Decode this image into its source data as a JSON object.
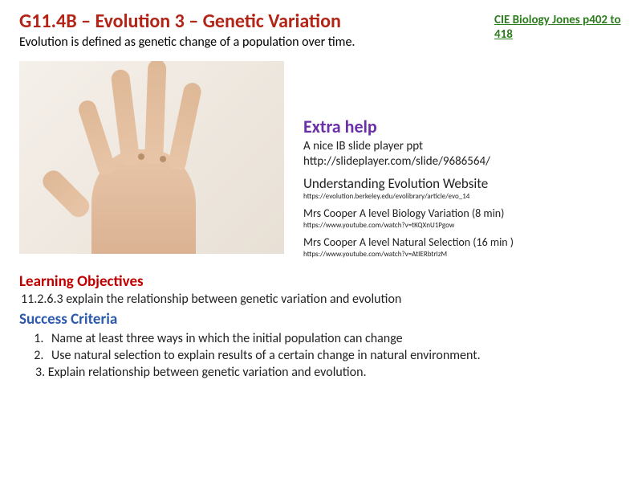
{
  "colors": {
    "title_red": "#b32417",
    "reference_green": "#2e7d1f",
    "extra_purple": "#6b2fa8",
    "objectives_red": "#c00000",
    "criteria_blue": "#2e5aac",
    "text_black": "#1a1a1a"
  },
  "header": {
    "title": "G11.4B  –  Evolution 3 – Genetic Variation",
    "subtitle": "Evolution is defined as genetic change of a population over time.",
    "reference": "CIE Biology Jones p402 to 418"
  },
  "extra_help": {
    "heading": "Extra help",
    "items": [
      {
        "label": "A nice IB slide player ppt",
        "url": "http://slideplayer.com/slide/9686564/",
        "label_size": 15,
        "url_size": 15
      },
      {
        "label": "Understanding Evolution Website",
        "url": "https://evolution.berkeley.edu/evolibrary/article/evo_14",
        "label_size": 17,
        "url_size": 9
      },
      {
        "label": "Mrs Cooper A level Biology Variation (8 min)",
        "url": "https://www.youtube.com/watch?v=tKQXnU1Pgow",
        "label_size": 14,
        "url_size": 9
      },
      {
        "label": "Mrs Cooper A level Natural Selection (16 min )",
        "url": "https://www.youtube.com/watch?v=AtIERbtrIzM",
        "label_size": 14,
        "url_size": 9
      }
    ]
  },
  "learning_objectives": {
    "heading": "Learning Objectives",
    "text": "11.2.6.3 explain the relationship between genetic variation and evolution"
  },
  "success_criteria": {
    "heading": "Success Criteria",
    "items": [
      "Name at least three ways in which the initial population can change",
      "Use natural selection to explain results of a certain change in natural environment.",
      "Explain relationship between genetic variation and evolution."
    ]
  }
}
